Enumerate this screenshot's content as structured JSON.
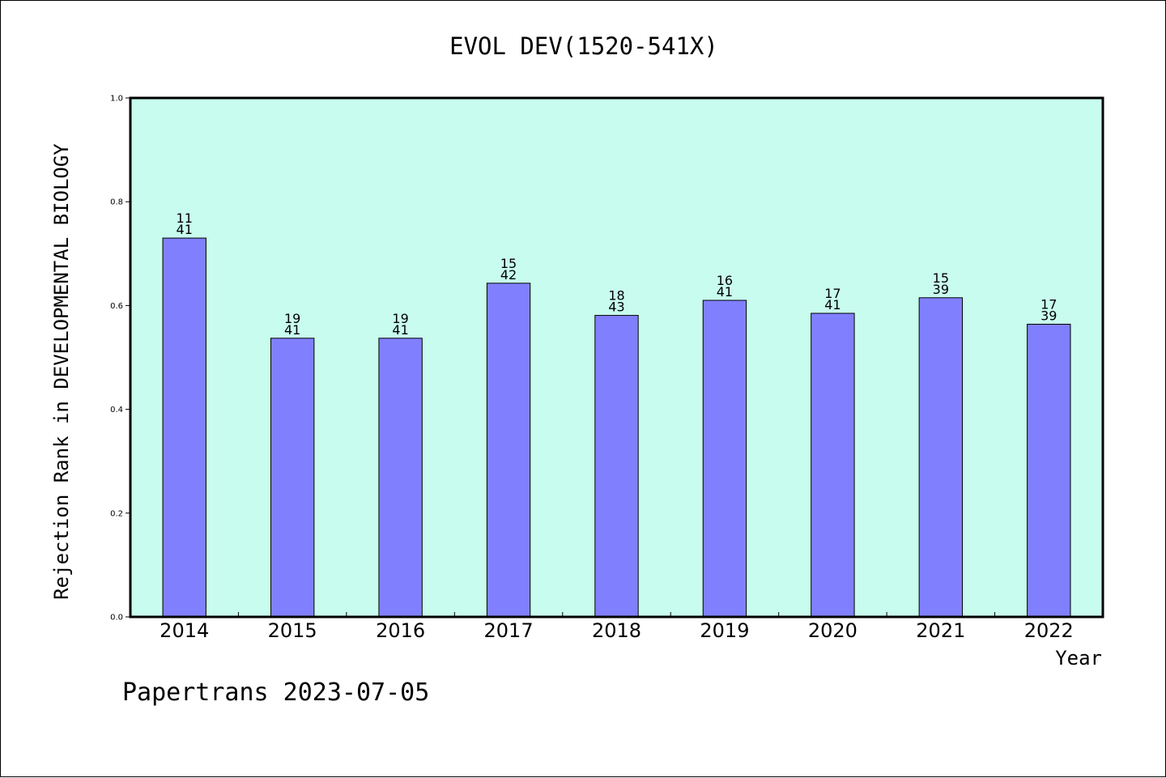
{
  "chart_data": {
    "type": "bar",
    "title": "EVOL DEV(1520-541X)",
    "xlabel": "Year",
    "ylabel": "Rejection Rank in DEVELOPMENTAL BIOLOGY",
    "ylim": [
      0,
      1.0
    ],
    "y_ticks": [
      "0.0",
      "0.2",
      "0.4",
      "0.6",
      "0.8",
      "1.0"
    ],
    "grid": false,
    "categories": [
      "2014",
      "2015",
      "2016",
      "2017",
      "2018",
      "2019",
      "2020",
      "2021",
      "2022"
    ],
    "values": [
      0.73,
      0.537,
      0.537,
      0.643,
      0.581,
      0.61,
      0.585,
      0.615,
      0.564
    ],
    "data_labels": [
      [
        "11",
        "41"
      ],
      [
        "19",
        "41"
      ],
      [
        "19",
        "41"
      ],
      [
        "15",
        "42"
      ],
      [
        "18",
        "43"
      ],
      [
        "16",
        "41"
      ],
      [
        "17",
        "41"
      ],
      [
        "15",
        "39"
      ],
      [
        "17",
        "39"
      ]
    ],
    "colors": {
      "plot_background": "#c8fcee",
      "bar_fill": "#8080ff",
      "bar_stroke": "#000000",
      "axis": "#000000"
    }
  },
  "footer": {
    "text": "Papertrans 2023-07-05"
  }
}
